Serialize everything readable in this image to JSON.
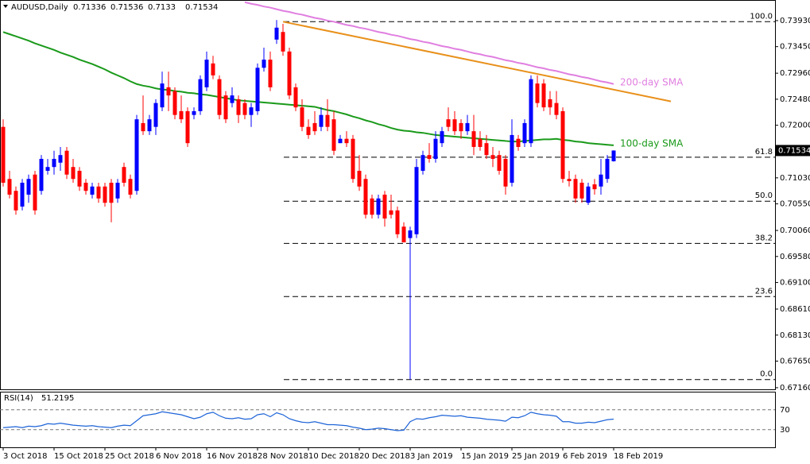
{
  "chart_data": {
    "type": "candlestick",
    "title": "AUDUSD,Daily",
    "categories": [
      "3 Oct 2018",
      null,
      null,
      null,
      null,
      null,
      null,
      null,
      "15 Oct 2018",
      null,
      null,
      null,
      null,
      null,
      null,
      null,
      "25 Oct 2018",
      null,
      null,
      null,
      null,
      null,
      null,
      null,
      "6 Nov 2018",
      null,
      null,
      null,
      null,
      null,
      null,
      null,
      "16 Nov 2018",
      null,
      null,
      null,
      null,
      null,
      null,
      null,
      "28 Nov 2018",
      null,
      null,
      null,
      null,
      null,
      null,
      null,
      "10 Dec 2018",
      null,
      null,
      null,
      null,
      null,
      null,
      null,
      "20 Dec 2018",
      null,
      null,
      null,
      null,
      null,
      null,
      null,
      "3 Jan 2019",
      null,
      null,
      null,
      null,
      null,
      null,
      null,
      "15 Jan 2019",
      null,
      null,
      null,
      null,
      null,
      null,
      null,
      "25 Jan 2019",
      null,
      null,
      null,
      null,
      null,
      null,
      null,
      "6 Feb 2019",
      null,
      null,
      null,
      null,
      null,
      null,
      null,
      "18 Feb 2019"
    ],
    "open": [
      0.7197,
      0.7101,
      0.7079,
      0.705,
      0.7072,
      0.7109,
      0.7079,
      0.7116,
      0.7123,
      0.7131,
      0.7153,
      0.7123,
      0.7116,
      0.7094,
      0.7072,
      0.7087,
      0.7087,
      0.7094,
      0.7065,
      0.7123,
      0.7101,
      0.7079,
      0.7204,
      0.7189,
      0.7197,
      0.7233,
      0.727,
      0.7263,
      0.7226,
      0.7226,
      0.7219,
      0.7226,
      0.727,
      0.7314,
      0.7285,
      0.7255,
      0.7241,
      0.7248,
      0.7241,
      0.7219,
      0.7226,
      0.7306,
      0.7321,
      0.7358,
      0.7372,
      0.7336,
      0.727,
      0.7233,
      0.7197,
      0.7204,
      0.7197,
      0.7219,
      0.7211,
      0.7167,
      0.7175,
      0.7175,
      0.7116,
      0.7101,
      0.7065,
      0.7035,
      0.7072,
      0.7043,
      0.7043,
      0.7013,
      0.6992,
      0.6999,
      0.7116,
      0.7145,
      0.7138,
      0.7167,
      0.7211,
      0.7211,
      0.7204,
      0.7189,
      0.7189,
      0.7175,
      0.7167,
      0.7145,
      0.7145,
      0.7138,
      0.7094,
      0.7175,
      0.7167,
      0.7167,
      0.7277,
      0.7277,
      0.7248,
      0.7241,
      0.7226,
      0.7101,
      0.7101,
      0.7094,
      0.7057,
      0.7091,
      0.7087,
      0.7101,
      0.71336
    ],
    "high": [
      0.7211,
      0.7116,
      0.7087,
      0.7101,
      0.7109,
      0.7116,
      0.7145,
      0.7138,
      0.7153,
      0.716,
      0.716,
      0.7138,
      0.7123,
      0.7101,
      0.7094,
      0.7094,
      0.7094,
      0.7101,
      0.7101,
      0.7131,
      0.7109,
      0.7219,
      0.7255,
      0.7219,
      0.7248,
      0.7299,
      0.7299,
      0.727,
      0.7255,
      0.7233,
      0.7233,
      0.7292,
      0.7336,
      0.7328,
      0.7292,
      0.7263,
      0.727,
      0.7255,
      0.7248,
      0.7241,
      0.7314,
      0.7343,
      0.7336,
      0.7394,
      0.7387,
      0.7343,
      0.7277,
      0.7248,
      0.7211,
      0.7226,
      0.7233,
      0.7248,
      0.7226,
      0.7182,
      0.7189,
      0.7182,
      0.7145,
      0.7109,
      0.7072,
      0.7072,
      0.7079,
      0.7072,
      0.705,
      0.7021,
      0.7013,
      0.7138,
      0.7153,
      0.7167,
      0.7189,
      0.7197,
      0.7233,
      0.7226,
      0.7211,
      0.7219,
      0.7219,
      0.7189,
      0.7182,
      0.716,
      0.7153,
      0.7145,
      0.7211,
      0.7182,
      0.7211,
      0.7292,
      0.7292,
      0.7285,
      0.7263,
      0.7263,
      0.7233,
      0.7116,
      0.7109,
      0.7101,
      0.7094,
      0.7101,
      0.7138,
      0.7145,
      0.71536
    ],
    "low": [
      0.7087,
      0.7065,
      0.7035,
      0.7043,
      0.7057,
      0.7035,
      0.7072,
      0.7109,
      0.7109,
      0.7116,
      0.7101,
      0.7094,
      0.7079,
      0.7072,
      0.7065,
      0.7057,
      0.705,
      0.7021,
      0.7057,
      0.7087,
      0.7065,
      0.7072,
      0.7182,
      0.7182,
      0.7182,
      0.7226,
      0.7226,
      0.7211,
      0.7204,
      0.716,
      0.7211,
      0.7219,
      0.7263,
      0.7285,
      0.7211,
      0.7204,
      0.7233,
      0.7204,
      0.7211,
      0.7197,
      0.7219,
      0.7299,
      0.7263,
      0.735,
      0.7328,
      0.7248,
      0.7226,
      0.7189,
      0.7175,
      0.7182,
      0.7189,
      0.7189,
      0.7145,
      0.7167,
      0.716,
      0.7094,
      0.7079,
      0.7028,
      0.7028,
      0.7028,
      0.7013,
      0.7028,
      0.6992,
      0.6984,
      0.6731,
      0.6992,
      0.7109,
      0.7131,
      0.7131,
      0.716,
      0.7189,
      0.7182,
      0.7175,
      0.7182,
      0.7145,
      0.7153,
      0.7138,
      0.7123,
      0.7109,
      0.7072,
      0.7087,
      0.7153,
      0.716,
      0.716,
      0.7233,
      0.7226,
      0.7219,
      0.7211,
      0.7094,
      0.7087,
      0.7057,
      0.7057,
      0.7053,
      0.7072,
      0.7072,
      0.7094,
      0.7133
    ],
    "close": [
      0.7094,
      0.7072,
      0.7043,
      0.7094,
      0.7101,
      0.7043,
      0.7138,
      0.7123,
      0.7138,
      0.7145,
      0.7109,
      0.7101,
      0.7087,
      0.7079,
      0.7087,
      0.7065,
      0.7057,
      0.7057,
      0.7094,
      0.7094,
      0.7072,
      0.7211,
      0.7189,
      0.7211,
      0.7241,
      0.7277,
      0.7255,
      0.7219,
      0.7211,
      0.7167,
      0.7226,
      0.7285,
      0.7321,
      0.7292,
      0.7219,
      0.7211,
      0.7255,
      0.7219,
      0.7219,
      0.7233,
      0.7306,
      0.7321,
      0.727,
      0.738,
      0.7336,
      0.7255,
      0.7233,
      0.7197,
      0.7182,
      0.7189,
      0.7219,
      0.7197,
      0.7153,
      0.7175,
      0.7167,
      0.7101,
      0.7087,
      0.7035,
      0.7035,
      0.7065,
      0.7028,
      0.7035,
      0.6999,
      0.6984,
      0.7006,
      0.7123,
      0.7145,
      0.7138,
      0.7175,
      0.7189,
      0.7197,
      0.7189,
      0.7189,
      0.7204,
      0.716,
      0.716,
      0.7145,
      0.7138,
      0.7116,
      0.7087,
      0.7182,
      0.716,
      0.7204,
      0.7285,
      0.7241,
      0.7233,
      0.7233,
      0.7219,
      0.7101,
      0.7097,
      0.7065,
      0.7065,
      0.7087,
      0.7082,
      0.7109,
      0.7138,
      0.71534
    ],
    "up_color": "#0000ff",
    "down_color": "#ff0000",
    "ylim": [
      0.6713,
      0.7431
    ],
    "yticks": [
      {
        "value": 0.7393,
        "label": "0.73930"
      },
      {
        "value": 0.7345,
        "label": "0.73450"
      },
      {
        "value": 0.7296,
        "label": "0.72960"
      },
      {
        "value": 0.7248,
        "label": "0.72480"
      },
      {
        "value": 0.72,
        "label": "0.72000"
      },
      {
        "value": 0.7103,
        "label": "0.71030"
      },
      {
        "value": 0.7055,
        "label": "0.70550"
      },
      {
        "value": 0.7006,
        "label": "0.70060"
      },
      {
        "value": 0.6958,
        "label": "0.69580"
      },
      {
        "value": 0.691,
        "label": "0.69100"
      },
      {
        "value": 0.6861,
        "label": "0.68610"
      },
      {
        "value": 0.6813,
        "label": "0.68130"
      },
      {
        "value": 0.6765,
        "label": "0.67650"
      },
      {
        "value": 0.6716,
        "label": "0.67160"
      }
    ],
    "series": [
      {
        "name": "200-day SMA",
        "color": "#e07fe0",
        "values": [
          null,
          null,
          null,
          null,
          null,
          null,
          null,
          null,
          null,
          null,
          null,
          null,
          null,
          null,
          null,
          null,
          null,
          null,
          null,
          null,
          null,
          null,
          null,
          null,
          null,
          null,
          null,
          null,
          null,
          null,
          null,
          null,
          null,
          null,
          null,
          null,
          null,
          null,
          0.7427,
          0.7424,
          0.7422,
          0.7419,
          0.7417,
          0.7414,
          0.7411,
          0.7409,
          0.7406,
          0.7404,
          0.7401,
          0.7398,
          0.7396,
          0.7393,
          0.7391,
          0.7388,
          0.7385,
          0.7383,
          0.738,
          0.7378,
          0.7375,
          0.7372,
          0.737,
          0.7367,
          0.7365,
          0.7362,
          0.7359,
          0.7357,
          0.7354,
          0.7352,
          0.7349,
          0.7346,
          0.7344,
          0.7341,
          0.7339,
          0.7336,
          0.7333,
          0.7331,
          0.7328,
          0.7326,
          0.7323,
          0.732,
          0.7318,
          0.7315,
          0.7313,
          0.731,
          0.7307,
          0.7305,
          0.7302,
          0.73,
          0.7297,
          0.7294,
          0.7292,
          0.7289,
          0.7287,
          0.7284,
          0.7281,
          0.7279,
          0.7276
        ]
      },
      {
        "name": "100-day SMA",
        "color": "#1a9a1a",
        "values": [
          0.7372,
          0.7368,
          0.7364,
          0.736,
          0.7356,
          0.7351,
          0.7347,
          0.7343,
          0.7339,
          0.7334,
          0.733,
          0.7326,
          0.7321,
          0.7317,
          0.7313,
          0.7308,
          0.7303,
          0.7297,
          0.7292,
          0.7287,
          0.7281,
          0.7276,
          0.7273,
          0.7271,
          0.7268,
          0.7266,
          0.7265,
          0.7263,
          0.7262,
          0.726,
          0.7259,
          0.7257,
          0.7256,
          0.7254,
          0.7252,
          0.725,
          0.7248,
          0.7246,
          0.7245,
          0.7244,
          0.7243,
          0.7242,
          0.7241,
          0.724,
          0.7239,
          0.7238,
          0.7237,
          0.7236,
          0.7235,
          0.7234,
          0.7231,
          0.7228,
          0.7226,
          0.7223,
          0.722,
          0.7216,
          0.7213,
          0.7209,
          0.7206,
          0.7202,
          0.7199,
          0.7195,
          0.7192,
          0.719,
          0.7189,
          0.7187,
          0.7186,
          0.7184,
          0.7182,
          0.7181,
          0.718,
          0.7179,
          0.7178,
          0.7177,
          0.7176,
          0.7175,
          0.7174,
          0.7173,
          0.7172,
          0.7171,
          0.717,
          0.717,
          0.7171,
          0.7172,
          0.7173,
          0.7174,
          0.7174,
          0.7175,
          0.7173,
          0.7172,
          0.717,
          0.7169,
          0.7167,
          0.7166,
          0.7165,
          0.7164,
          0.7163
        ]
      }
    ],
    "trendline": {
      "color": "#e8901a",
      "x": [
        44,
        105
      ],
      "values": [
        0.7391,
        0.7244
      ]
    },
    "fib_levels": [
      {
        "value": 0.7391,
        "label": "100.0"
      },
      {
        "value": 0.7141,
        "label": "61.8"
      },
      {
        "value": 0.706,
        "label": "50.0"
      },
      {
        "value": 0.6982,
        "label": "38.2"
      },
      {
        "value": 0.6884,
        "label": "23.6"
      },
      {
        "value": 0.6731,
        "label": "0.0"
      }
    ],
    "rsi": {
      "title": "RSI(14)",
      "color": "#1e64d8",
      "ylim": [
        0,
        100
      ],
      "yticks": [
        30,
        70
      ],
      "values": [
        34,
        35,
        36,
        34,
        37,
        36,
        38,
        42,
        41,
        43,
        41,
        39,
        38,
        37,
        38,
        36,
        35,
        34,
        37,
        39,
        38,
        48,
        58,
        60,
        62,
        66,
        64,
        62,
        60,
        56,
        52,
        55,
        62,
        65,
        58,
        53,
        52,
        54,
        51,
        52,
        60,
        62,
        56,
        64,
        60,
        52,
        48,
        45,
        44,
        46,
        43,
        40,
        40,
        39,
        38,
        35,
        33,
        30,
        31,
        33,
        32,
        30,
        28,
        29,
        46,
        52,
        51,
        54,
        56,
        59,
        58,
        57,
        58,
        55,
        54,
        53,
        51,
        50,
        49,
        47,
        55,
        54,
        58,
        65,
        62,
        60,
        59,
        57,
        46,
        46,
        43,
        43,
        45,
        44,
        47,
        50,
        51.2195
      ]
    }
  }
}
